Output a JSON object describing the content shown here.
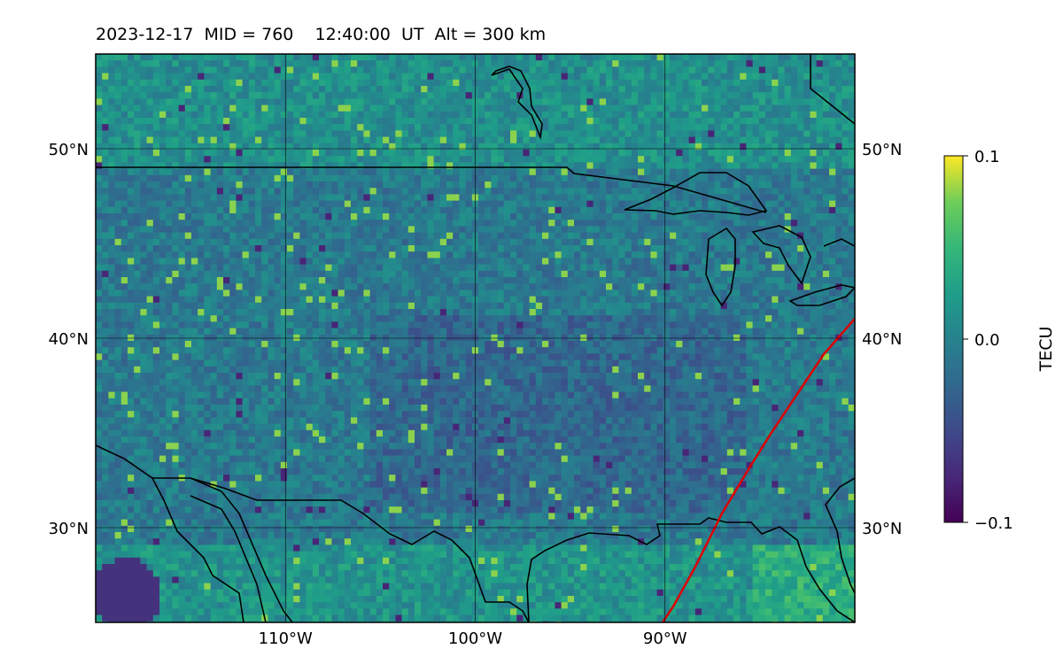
{
  "title": "2023-12-17  MID = 760    12:40:00  UT  Alt = 300 km",
  "map": {
    "lat_range": [
      25,
      55
    ],
    "lon_range": [
      -120,
      -80
    ],
    "lat_ticks": [
      {
        "value": 50,
        "label": "50°N"
      },
      {
        "value": 40,
        "label": "40°N"
      },
      {
        "value": 30,
        "label": "30°N"
      }
    ],
    "lon_ticks": [
      {
        "value": -110,
        "label": "110°W"
      },
      {
        "value": -100,
        "label": "100°W"
      },
      {
        "value": -90,
        "label": "90°W"
      }
    ],
    "grid": true,
    "terminator_color": "#dd0000"
  },
  "colorbar": {
    "label": "TECU",
    "min": -0.1,
    "max": 0.1,
    "ticks": [
      {
        "value": 0.1,
        "label": "0.1"
      },
      {
        "value": 0.0,
        "label": "0.0"
      },
      {
        "value": -0.1,
        "label": "−0.1"
      }
    ],
    "colormap": "viridis"
  }
}
